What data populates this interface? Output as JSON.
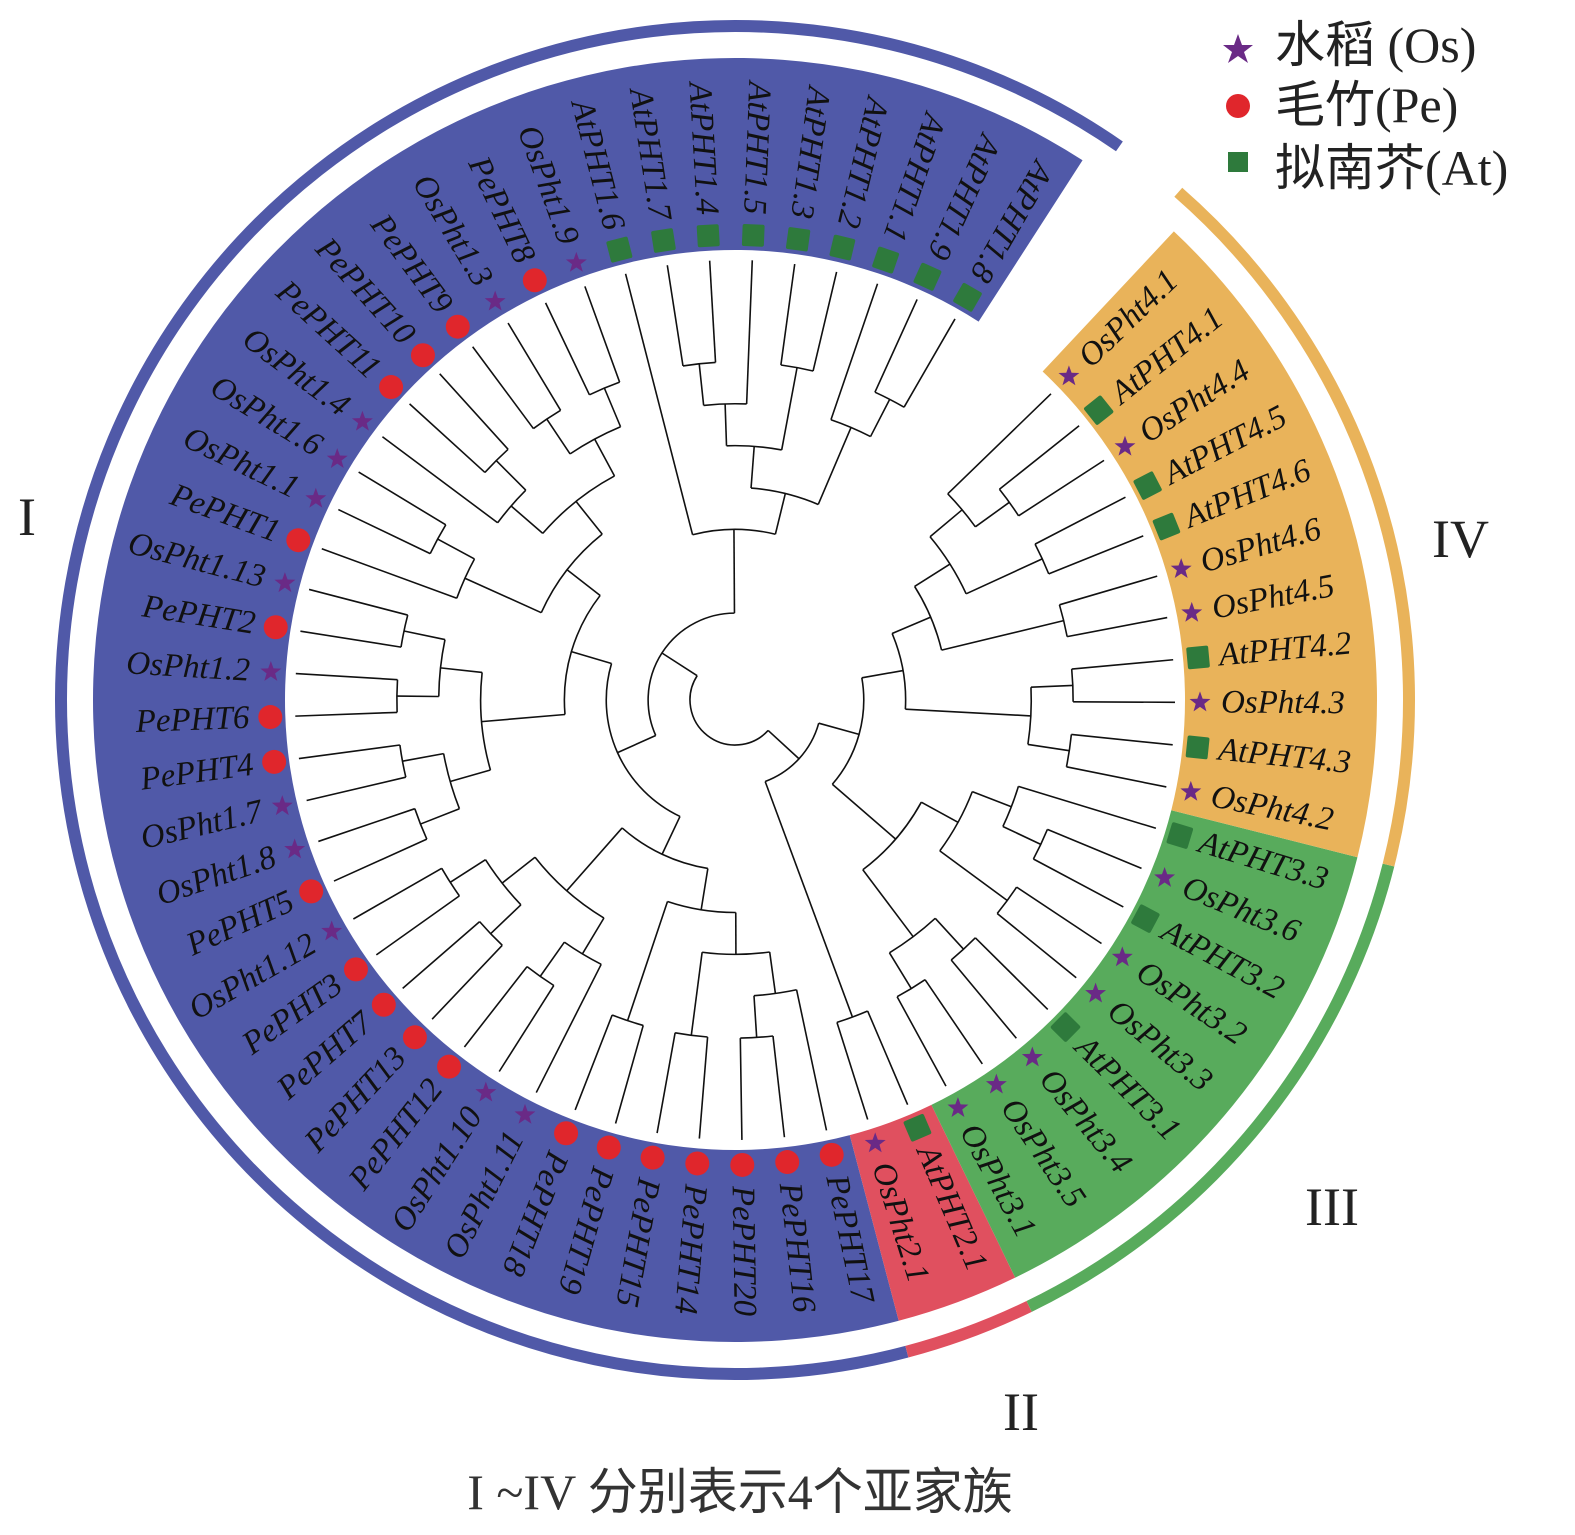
{
  "colors": {
    "clade_I": "#5059a8",
    "clade_II": "#e0505f",
    "clade_III": "#58ab5c",
    "clade_IV": "#e9b35a",
    "Os": "#6a2a86",
    "Pe": "#e0262c",
    "At": "#2e7a3c",
    "branch": "#111111"
  },
  "legend": [
    {
      "species": "Os",
      "icon": "star-icon",
      "label": "水稻 (Os)"
    },
    {
      "species": "Pe",
      "icon": "circle-icon",
      "label": "毛竹(Pe)"
    },
    {
      "species": "At",
      "icon": "square-icon",
      "label": "拟南芥(At)"
    }
  ],
  "clades": [
    {
      "id": "I",
      "label": "I"
    },
    {
      "id": "II",
      "label": "II"
    },
    {
      "id": "III",
      "label": "III"
    },
    {
      "id": "IV",
      "label": "IV"
    }
  ],
  "footer": "I ~IV 分别表示4个亚家族",
  "leaves": [
    {
      "name": "AtPHT1.8",
      "species": "At",
      "clade": "I"
    },
    {
      "name": "AtPHT1.9",
      "species": "At",
      "clade": "I"
    },
    {
      "name": "AtPHT1.1",
      "species": "At",
      "clade": "I"
    },
    {
      "name": "AtPHT1.2",
      "species": "At",
      "clade": "I"
    },
    {
      "name": "AtPHT1.3",
      "species": "At",
      "clade": "I"
    },
    {
      "name": "AtPHT1.5",
      "species": "At",
      "clade": "I"
    },
    {
      "name": "AtPHT1.4",
      "species": "At",
      "clade": "I"
    },
    {
      "name": "AtPHT1.7",
      "species": "At",
      "clade": "I"
    },
    {
      "name": "AtPHT1.6",
      "species": "At",
      "clade": "I"
    },
    {
      "name": "OsPht1.9",
      "species": "Os",
      "clade": "I"
    },
    {
      "name": "PePHT8",
      "species": "Pe",
      "clade": "I"
    },
    {
      "name": "OsPht1.3",
      "species": "Os",
      "clade": "I"
    },
    {
      "name": "PePHT9",
      "species": "Pe",
      "clade": "I"
    },
    {
      "name": "PePHT10",
      "species": "Pe",
      "clade": "I"
    },
    {
      "name": "PePHT11",
      "species": "Pe",
      "clade": "I"
    },
    {
      "name": "OsPht1.4",
      "species": "Os",
      "clade": "I"
    },
    {
      "name": "OsPht1.6",
      "species": "Os",
      "clade": "I"
    },
    {
      "name": "OsPht1.1",
      "species": "Os",
      "clade": "I"
    },
    {
      "name": "PePHT1",
      "species": "Pe",
      "clade": "I"
    },
    {
      "name": "OsPht1.13",
      "species": "Os",
      "clade": "I"
    },
    {
      "name": "PePHT2",
      "species": "Pe",
      "clade": "I"
    },
    {
      "name": "OsPht1.2",
      "species": "Os",
      "clade": "I"
    },
    {
      "name": "PePHT6",
      "species": "Pe",
      "clade": "I"
    },
    {
      "name": "PePHT4",
      "species": "Pe",
      "clade": "I"
    },
    {
      "name": "OsPht1.7",
      "species": "Os",
      "clade": "I"
    },
    {
      "name": "OsPht1.8",
      "species": "Os",
      "clade": "I"
    },
    {
      "name": "PePHT5",
      "species": "Pe",
      "clade": "I"
    },
    {
      "name": "OsPht1.12",
      "species": "Os",
      "clade": "I"
    },
    {
      "name": "PePHT3",
      "species": "Pe",
      "clade": "I"
    },
    {
      "name": "PePHT7",
      "species": "Pe",
      "clade": "I"
    },
    {
      "name": "PePHT13",
      "species": "Pe",
      "clade": "I"
    },
    {
      "name": "PePHT12",
      "species": "Pe",
      "clade": "I"
    },
    {
      "name": "OsPht1.10",
      "species": "Os",
      "clade": "I"
    },
    {
      "name": "OsPht1.11",
      "species": "Os",
      "clade": "I"
    },
    {
      "name": "PePHT18",
      "species": "Pe",
      "clade": "I"
    },
    {
      "name": "PePHT19",
      "species": "Pe",
      "clade": "I"
    },
    {
      "name": "PePHT15",
      "species": "Pe",
      "clade": "I"
    },
    {
      "name": "PePHT14",
      "species": "Pe",
      "clade": "I"
    },
    {
      "name": "PePHT20",
      "species": "Pe",
      "clade": "I"
    },
    {
      "name": "PePHT16",
      "species": "Pe",
      "clade": "I"
    },
    {
      "name": "PePHT17",
      "species": "Pe",
      "clade": "I"
    },
    {
      "name": "OsPht2.1",
      "species": "Os",
      "clade": "II"
    },
    {
      "name": "AtPHT2.1",
      "species": "At",
      "clade": "II"
    },
    {
      "name": "OsPht3.1",
      "species": "Os",
      "clade": "III"
    },
    {
      "name": "OsPht3.5",
      "species": "Os",
      "clade": "III"
    },
    {
      "name": "OsPht3.4",
      "species": "Os",
      "clade": "III"
    },
    {
      "name": "AtPHT3.1",
      "species": "At",
      "clade": "III"
    },
    {
      "name": "OsPht3.3",
      "species": "Os",
      "clade": "III"
    },
    {
      "name": "OsPht3.2",
      "species": "Os",
      "clade": "III"
    },
    {
      "name": "AtPHT3.2",
      "species": "At",
      "clade": "III"
    },
    {
      "name": "OsPht3.6",
      "species": "Os",
      "clade": "III"
    },
    {
      "name": "AtPHT3.3",
      "species": "At",
      "clade": "III"
    },
    {
      "name": "OsPht4.2",
      "species": "Os",
      "clade": "IV"
    },
    {
      "name": "AtPHT4.3",
      "species": "At",
      "clade": "IV"
    },
    {
      "name": "OsPht4.3",
      "species": "Os",
      "clade": "IV"
    },
    {
      "name": "AtPHT4.2",
      "species": "At",
      "clade": "IV"
    },
    {
      "name": "OsPht4.5",
      "species": "Os",
      "clade": "IV"
    },
    {
      "name": "OsPht4.6",
      "species": "Os",
      "clade": "IV"
    },
    {
      "name": "AtPHT4.6",
      "species": "At",
      "clade": "IV"
    },
    {
      "name": "AtPHT4.5",
      "species": "At",
      "clade": "IV"
    },
    {
      "name": "OsPht4.4",
      "species": "Os",
      "clade": "IV"
    },
    {
      "name": "AtPHT4.1",
      "species": "At",
      "clade": "IV"
    },
    {
      "name": "OsPht4.1",
      "species": "Os",
      "clade": "IV"
    }
  ],
  "tree": [
    [
      [
        [
          [
            [
              "AtPHT1.8",
              "AtPHT1.9"
            ],
            "AtPHT1.1"
          ],
          [
            [
              "AtPHT1.2",
              "AtPHT1.3"
            ],
            [
              "AtPHT1.5",
              [
                "AtPHT1.4",
                "AtPHT1.7"
              ]
            ]
          ]
        ],
        "AtPHT1.6"
      ],
      [
        [
          [
            [
              [
                [
                  "OsPht1.9",
                  "PePHT8"
                ],
                [
                  "OsPht1.3",
                  "PePHT9"
                ]
              ],
              [
                [
                  "PePHT10",
                  "PePHT11"
                ],
                "OsPht1.4"
              ]
            ],
            [
              [
                "OsPht1.6",
                "OsPht1.1"
              ],
              "PePHT1"
            ]
          ],
          [
            [
              [
                "OsPht1.13",
                "PePHT2"
              ],
              [
                "OsPht1.2",
                "PePHT6"
              ]
            ],
            [
              [
                "PePHT4",
                "OsPht1.7"
              ],
              [
                "OsPht1.8",
                "PePHT5"
              ]
            ]
          ]
        ],
        [
          [
            [
              [
                "OsPht1.12",
                "PePHT3"
              ],
              [
                "PePHT7",
                "PePHT13"
              ]
            ],
            [
              [
                "PePHT12",
                "OsPht1.10"
              ],
              "OsPht1.11"
            ]
          ],
          [
            [
              "PePHT18",
              "PePHT19"
            ],
            [
              [
                "PePHT15",
                "PePHT14"
              ],
              [
                [
                  "PePHT20",
                  "PePHT16"
                ],
                "PePHT17"
              ]
            ]
          ]
        ]
      ]
    ],
    [
      [
        "OsPht2.1",
        "AtPHT2.1"
      ],
      [
        [
          [
            [
              "OsPht3.1",
              "OsPht3.5"
            ],
            [
              "OsPht3.4",
              "AtPHT3.1"
            ]
          ],
          [
            [
              "OsPht3.3",
              "OsPht3.2"
            ],
            [
              [
                "AtPHT3.2",
                "OsPht3.6"
              ],
              "AtPHT3.3"
            ]
          ]
        ],
        [
          [
            [
              "OsPht4.2",
              "AtPHT4.3"
            ],
            [
              "OsPht4.3",
              "AtPHT4.2"
            ]
          ],
          [
            [
              "OsPht4.5",
              "OsPht4.6"
            ],
            [
              [
                "AtPHT4.6",
                "AtPHT4.5"
              ],
              [
                [
                  "OsPht4.4",
                  "AtPHT4.1"
                ],
                "OsPht4.1"
              ]
            ]
          ]
        ]
      ]
    ]
  ]
}
